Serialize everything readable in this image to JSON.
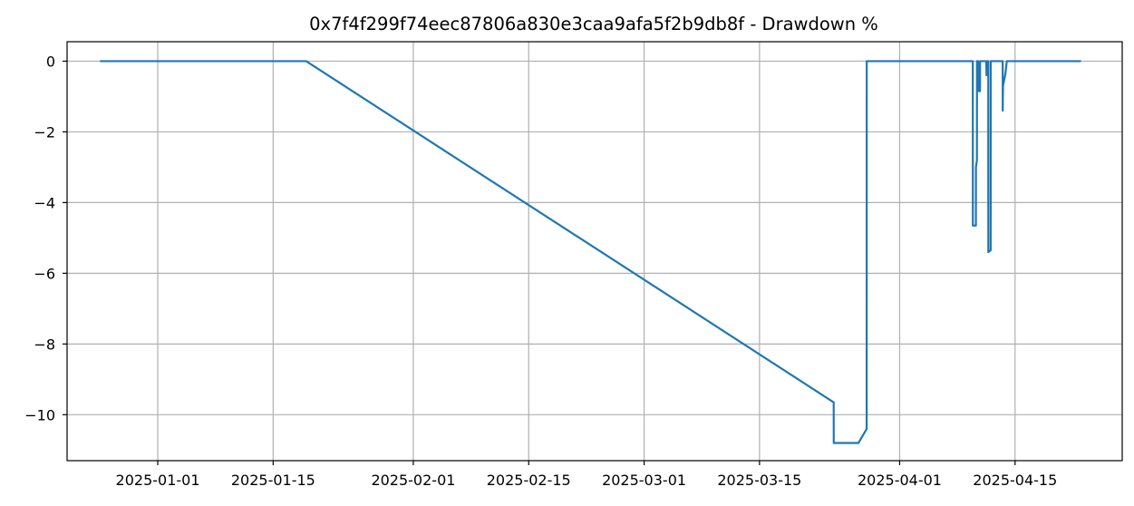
{
  "chart_data": {
    "type": "line",
    "title": "0x7f4f299f74eec87806a830e3caa9afa5f2b9db8f - Drawdown %",
    "xlabel": "",
    "ylabel": "",
    "x_type": "date",
    "xlim": [
      "2024-12-21",
      "2025-04-28"
    ],
    "ylim": [
      -11.3,
      0.55
    ],
    "grid": true,
    "legend": "none",
    "x_ticks": [
      "2025-01-01",
      "2025-01-15",
      "2025-02-01",
      "2025-02-15",
      "2025-03-01",
      "2025-03-15",
      "2025-04-01",
      "2025-04-15"
    ],
    "y_ticks": [
      0,
      -2,
      -4,
      -6,
      -8,
      -10
    ],
    "y_tick_labels": [
      "0",
      "−2",
      "−4",
      "−6",
      "−8",
      "−10"
    ],
    "series": [
      {
        "color": "#1f77b4",
        "points": [
          [
            "2024-12-25T00:00",
            0
          ],
          [
            "2025-01-19T00:00",
            0
          ],
          [
            "2025-03-24T00:00",
            -9.65
          ],
          [
            "2025-03-24T00:10",
            -10.8
          ],
          [
            "2025-03-27T00:00",
            -10.8
          ],
          [
            "2025-03-28T00:00",
            -10.4
          ],
          [
            "2025-03-28T00:10",
            0
          ],
          [
            "2025-04-09T21:00",
            0
          ],
          [
            "2025-04-09T21:10",
            -4.65
          ],
          [
            "2025-04-10T06:00",
            -4.65
          ],
          [
            "2025-04-10T06:10",
            -3.0
          ],
          [
            "2025-04-10T09:00",
            -2.8
          ],
          [
            "2025-04-10T09:10",
            0
          ],
          [
            "2025-04-10T13:00",
            0
          ],
          [
            "2025-04-10T15:00",
            -0.85
          ],
          [
            "2025-04-10T18:00",
            -0.85
          ],
          [
            "2025-04-10T18:10",
            0
          ],
          [
            "2025-04-11T12:00",
            0
          ],
          [
            "2025-04-11T13:00",
            -0.4
          ],
          [
            "2025-04-11T13:10",
            0
          ],
          [
            "2025-04-11T18:00",
            0
          ],
          [
            "2025-04-11T18:10",
            -5.4
          ],
          [
            "2025-04-12T01:00",
            -5.35
          ],
          [
            "2025-04-12T01:10",
            0
          ],
          [
            "2025-04-13T12:00",
            0
          ],
          [
            "2025-04-13T12:10",
            -1.4
          ],
          [
            "2025-04-13T13:00",
            -0.7
          ],
          [
            "2025-04-13T20:00",
            -0.35
          ],
          [
            "2025-04-14T00:00",
            0
          ],
          [
            "2025-04-23T00:00",
            0
          ]
        ]
      }
    ]
  }
}
